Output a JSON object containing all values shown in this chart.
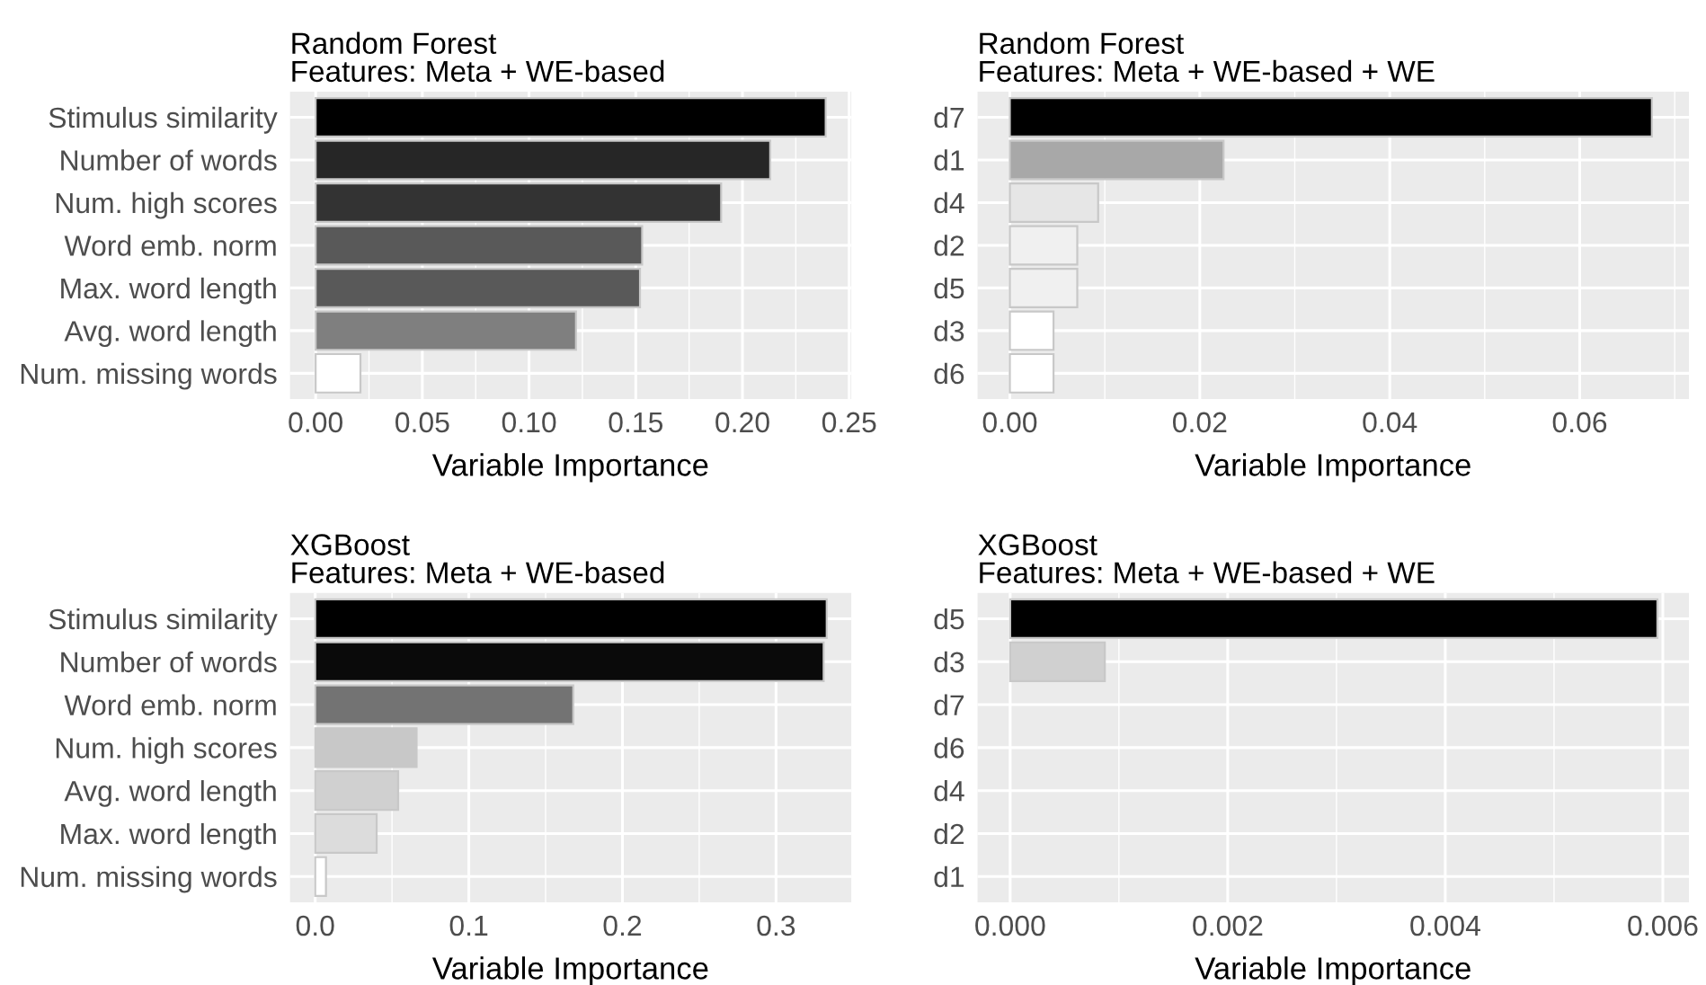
{
  "chart_data": [
    {
      "type": "bar",
      "orientation": "horizontal",
      "title": "Random Forest",
      "subtitle": "Features: Meta + WE-based",
      "xlabel": "Variable Importance",
      "categories": [
        "Stimulus similarity",
        "Number of words",
        "Num. high scores",
        "Word emb. norm",
        "Max. word length",
        "Avg. word length",
        "Num. missing words"
      ],
      "values": [
        0.239,
        0.213,
        0.19,
        0.153,
        0.152,
        0.122,
        0.021
      ],
      "colors": [
        "#000000",
        "#262626",
        "#333333",
        "#595959",
        "#595959",
        "#7f7f7f",
        "#ffffff"
      ],
      "xlim": [
        -0.012,
        0.251
      ],
      "xticks": [
        {
          "value": 0,
          "label": "0.00"
        },
        {
          "value": 0.05,
          "label": "0.05"
        },
        {
          "value": 0.1,
          "label": "0.10"
        },
        {
          "value": 0.15,
          "label": "0.15"
        },
        {
          "value": 0.2,
          "label": "0.20"
        },
        {
          "value": 0.25,
          "label": "0.25"
        }
      ],
      "grid": true,
      "legend": false
    },
    {
      "type": "bar",
      "orientation": "horizontal",
      "title": "Random Forest",
      "subtitle": "Features: Meta + WE-based + WE",
      "xlabel": "Variable Importance",
      "categories": [
        "d7",
        "d1",
        "d4",
        "d2",
        "d5",
        "d3",
        "d6"
      ],
      "values": [
        0.0676,
        0.0225,
        0.0093,
        0.0071,
        0.0071,
        0.0046,
        0.0046
      ],
      "colors": [
        "#000000",
        "#a8a8a8",
        "#e6e6e6",
        "#f0f0f0",
        "#f0f0f0",
        "#ffffff",
        "#ffffff"
      ],
      "xlim": [
        -0.0034,
        0.0715
      ],
      "xticks": [
        {
          "value": 0,
          "label": "0.00"
        },
        {
          "value": 0.02,
          "label": "0.02"
        },
        {
          "value": 0.04,
          "label": "0.04"
        },
        {
          "value": 0.06,
          "label": "0.06"
        }
      ],
      "grid": true,
      "legend": false
    },
    {
      "type": "bar",
      "orientation": "horizontal",
      "title": "XGBoost",
      "subtitle": "Features: Meta + WE-based",
      "xlabel": "Variable Importance",
      "categories": [
        "Stimulus similarity",
        "Number of words",
        "Word emb. norm",
        "Num. high scores",
        "Avg. word length",
        "Max. word length",
        "Num. missing words"
      ],
      "values": [
        0.333,
        0.331,
        0.168,
        0.066,
        0.054,
        0.04,
        0.007
      ],
      "colors": [
        "#000000",
        "#0a0a0a",
        "#737373",
        "#c8c8c8",
        "#d0d0d0",
        "#dcdcdc",
        "#ffffff"
      ],
      "xlim": [
        -0.0164,
        0.349
      ],
      "xticks": [
        {
          "value": 0,
          "label": "0.0"
        },
        {
          "value": 0.1,
          "label": "0.1"
        },
        {
          "value": 0.2,
          "label": "0.2"
        },
        {
          "value": 0.3,
          "label": "0.3"
        }
      ],
      "grid": true,
      "legend": false
    },
    {
      "type": "bar",
      "orientation": "horizontal",
      "title": "XGBoost",
      "subtitle": "Features: Meta + WE-based + WE",
      "xlabel": "Variable Importance",
      "categories": [
        "d5",
        "d3",
        "d7",
        "d6",
        "d4",
        "d2",
        "d1"
      ],
      "values": [
        0.00595,
        0.00087,
        0,
        0,
        0,
        0,
        0
      ],
      "colors": [
        "#000000",
        "#d0d0d0",
        null,
        null,
        null,
        null,
        null
      ],
      "xlim": [
        -0.0003,
        0.00624
      ],
      "xticks": [
        {
          "value": 0,
          "label": "0.000"
        },
        {
          "value": 0.002,
          "label": "0.002"
        },
        {
          "value": 0.004,
          "label": "0.004"
        },
        {
          "value": 0.006,
          "label": "0.006"
        }
      ],
      "grid": true,
      "legend": false
    }
  ]
}
